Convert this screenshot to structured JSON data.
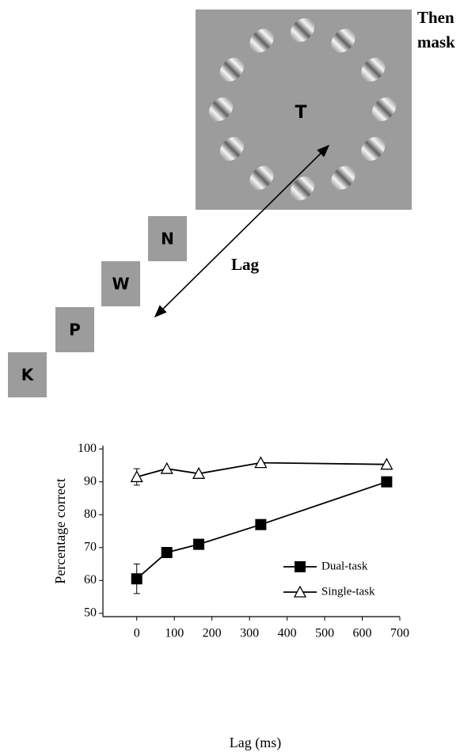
{
  "diagram": {
    "mask_label": [
      "Then",
      "mask"
    ],
    "target": "T",
    "letters": [
      "K",
      "P",
      "W",
      "N"
    ],
    "lag_label": "Lag"
  },
  "chart_data": {
    "type": "line",
    "xlabel": "Lag (ms)",
    "ylabel": "Percentage correct",
    "x": [
      0,
      80,
      165,
      330,
      665
    ],
    "series": [
      {
        "name": "Dual-task",
        "color": "#000000",
        "marker": "filled-square",
        "values": [
          60.5,
          68.5,
          71,
          77,
          90
        ],
        "errors": [
          4.5,
          null,
          null,
          null,
          null
        ]
      },
      {
        "name": "Single-task",
        "color": "#000000",
        "marker": "open-triangle",
        "values": [
          91.5,
          94,
          92.5,
          95.8,
          95.3
        ],
        "errors": [
          2.5,
          null,
          null,
          null,
          null
        ]
      }
    ],
    "xlim": [
      -90,
      700
    ],
    "xticks": [
      0,
      100,
      200,
      300,
      400,
      500,
      600,
      700
    ],
    "ylim": [
      49,
      101
    ],
    "yticks": [
      50,
      60,
      70,
      80,
      90,
      100
    ],
    "grid": false,
    "legend": "lower right"
  }
}
